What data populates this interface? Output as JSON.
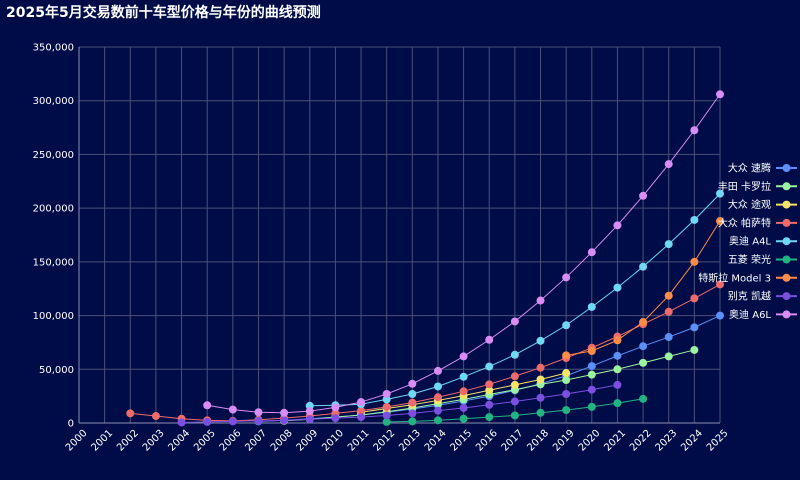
{
  "title": "2025年5月交易数前十车型价格与年份的曲线预测",
  "chart_data": {
    "type": "line",
    "title": "2025年5月交易数前十车型价格与年份的曲线预测",
    "xlabel": "",
    "ylabel": "",
    "x": [
      "2000",
      "2001",
      "2002",
      "2003",
      "2004",
      "2005",
      "2006",
      "2007",
      "2008",
      "2009",
      "2010",
      "2011",
      "2012",
      "2013",
      "2014",
      "2015",
      "2016",
      "2017",
      "2018",
      "2019",
      "2020",
      "2021",
      "2022",
      "2023",
      "2024",
      "2025"
    ],
    "ylim": [
      0,
      350000
    ],
    "yticks": [
      0,
      50000,
      100000,
      150000,
      200000,
      250000,
      300000,
      350000
    ],
    "ytick_labels": [
      "0",
      "50,000",
      "100,000",
      "150,000",
      "200,000",
      "250,000",
      "300,000",
      "350,000"
    ],
    "grid": true,
    "legend_position": "right",
    "series": [
      {
        "name": "大众 速腾",
        "color": "#5b8ff9",
        "values": [
          null,
          null,
          null,
          null,
          null,
          null,
          null,
          1500,
          2500,
          4000,
          5500,
          7500,
          10000,
          13000,
          16500,
          20500,
          25000,
          30500,
          36500,
          44000,
          53000,
          62500,
          71500,
          80000,
          89000,
          100000
        ]
      },
      {
        "name": "丰田 卡罗拉",
        "color": "#9bf5a0",
        "values": [
          null,
          null,
          null,
          null,
          null,
          null,
          null,
          null,
          2000,
          3500,
          5500,
          7500,
          10500,
          14000,
          18000,
          22000,
          26500,
          31000,
          36000,
          40000,
          45000,
          50000,
          56000,
          62000,
          68000,
          null
        ]
      },
      {
        "name": "大众 途观",
        "color": "#f6e36a",
        "values": [
          null,
          null,
          null,
          null,
          null,
          null,
          null,
          null,
          null,
          null,
          null,
          10000,
          13500,
          17000,
          21000,
          25500,
          30500,
          35500,
          40500,
          46500,
          null,
          null,
          null,
          null,
          null,
          null
        ]
      },
      {
        "name": "大众 帕萨特",
        "color": "#ef6b6b",
        "values": [
          null,
          null,
          9000,
          6500,
          4000,
          2500,
          2000,
          3000,
          4500,
          6500,
          9000,
          11500,
          15000,
          19000,
          24000,
          29500,
          36000,
          43500,
          51500,
          60500,
          70000,
          80500,
          92000,
          103500,
          116000,
          129000
        ]
      },
      {
        "name": "奥迪 A4L",
        "color": "#6fd8f2",
        "values": [
          null,
          null,
          null,
          null,
          null,
          null,
          null,
          null,
          null,
          16000,
          16500,
          17500,
          22000,
          27000,
          34000,
          43000,
          52500,
          63500,
          76500,
          91000,
          108000,
          126000,
          145500,
          166500,
          189000,
          213500
        ]
      },
      {
        "name": "五菱 荣光",
        "color": "#22b383",
        "values": [
          null,
          null,
          null,
          null,
          null,
          null,
          null,
          null,
          null,
          null,
          null,
          null,
          1000,
          1500,
          2500,
          4000,
          5500,
          7000,
          9500,
          12000,
          15000,
          18500,
          22500,
          null,
          null,
          null
        ]
      },
      {
        "name": "特斯拉 Model 3",
        "color": "#ff8c47",
        "values": [
          null,
          null,
          null,
          null,
          null,
          null,
          null,
          null,
          null,
          null,
          null,
          null,
          null,
          null,
          null,
          null,
          null,
          null,
          null,
          63000,
          67000,
          77000,
          94000,
          118500,
          150000,
          188000
        ]
      },
      {
        "name": "别克 凯越",
        "color": "#7b4fe0",
        "values": [
          null,
          null,
          null,
          null,
          500,
          1000,
          1500,
          2000,
          2500,
          3500,
          4500,
          5500,
          7000,
          9000,
          11500,
          14000,
          17000,
          20000,
          23500,
          27000,
          31000,
          35500,
          null,
          null,
          null,
          null
        ]
      },
      {
        "name": "奥迪 A6L",
        "color": "#d98cf2",
        "values": [
          null,
          null,
          null,
          null,
          null,
          16500,
          12500,
          10000,
          9500,
          11000,
          14500,
          19500,
          27000,
          36500,
          48500,
          62000,
          77500,
          94500,
          114000,
          135500,
          159000,
          184000,
          211500,
          241000,
          272500,
          306000
        ]
      }
    ]
  }
}
